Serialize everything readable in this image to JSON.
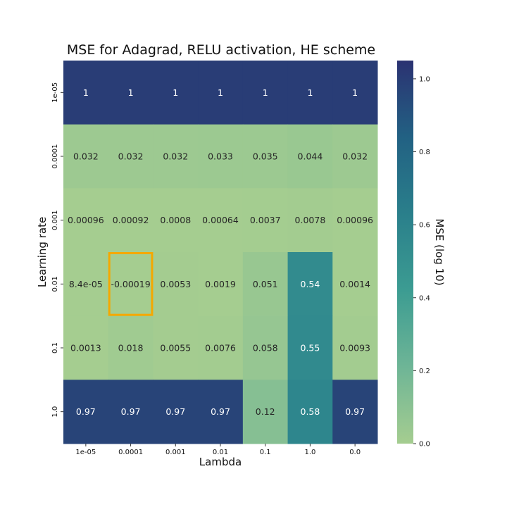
{
  "chart_data": {
    "type": "heatmap",
    "title": "MSE for Adagrad, RELU activation, HE scheme",
    "xlabel": "Lambda",
    "ylabel": "Learning rate",
    "x_categories": [
      "1e-05",
      "0.0001",
      "0.001",
      "0.01",
      "0.1",
      "1.0",
      "0.0"
    ],
    "y_categories": [
      "1e-05",
      "0.0001",
      "0.001",
      "0.01",
      "0.1",
      "1.0"
    ],
    "annotations": [
      [
        "1",
        "1",
        "1",
        "1",
        "1",
        "1",
        "1"
      ],
      [
        "0.032",
        "0.032",
        "0.032",
        "0.033",
        "0.035",
        "0.044",
        "0.032"
      ],
      [
        "0.00096",
        "0.00092",
        "0.0008",
        "0.00064",
        "0.0037",
        "0.0078",
        "0.00096"
      ],
      [
        "8.4e-05",
        "-0.00019",
        "0.0053",
        "0.0019",
        "0.051",
        "0.54",
        "0.0014"
      ],
      [
        "0.0013",
        "0.018",
        "0.0055",
        "0.0076",
        "0.058",
        "0.55",
        "0.0093"
      ],
      [
        "0.97",
        "0.97",
        "0.97",
        "0.97",
        "0.12",
        "0.58",
        "0.97"
      ]
    ],
    "values": [
      [
        1,
        1,
        1,
        1,
        1,
        1,
        1
      ],
      [
        0.032,
        0.032,
        0.032,
        0.033,
        0.035,
        0.044,
        0.032
      ],
      [
        0.00096,
        0.00092,
        0.0008,
        0.00064,
        0.0037,
        0.0078,
        0.00096
      ],
      [
        8.4e-05,
        -0.00019,
        0.0053,
        0.0019,
        0.051,
        0.54,
        0.0014
      ],
      [
        0.0013,
        0.018,
        0.0055,
        0.0076,
        0.058,
        0.55,
        0.0093
      ],
      [
        0.97,
        0.97,
        0.97,
        0.97,
        0.12,
        0.58,
        0.97
      ]
    ],
    "highlight": {
      "row": 3,
      "col": 1,
      "color": "#f5a800"
    },
    "colorbar": {
      "label": "MSE (log 10)",
      "range": [
        0.0,
        1.05
      ],
      "ticks": [
        "0.0",
        "0.2",
        "0.4",
        "0.6",
        "0.8",
        "1.0"
      ],
      "colormap": "crest"
    }
  }
}
